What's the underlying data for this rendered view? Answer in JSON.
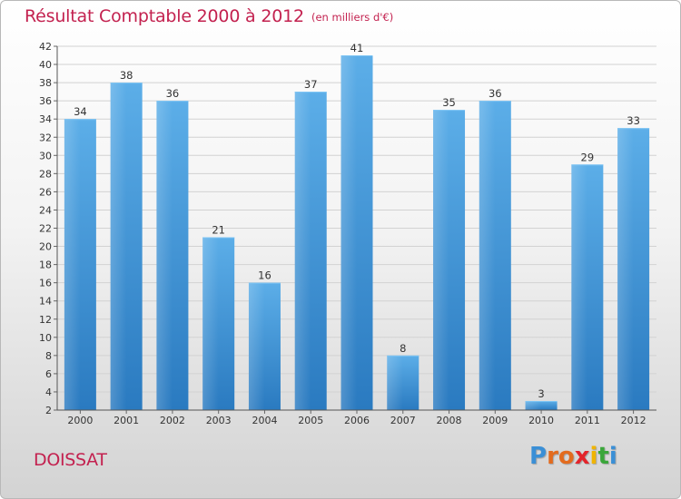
{
  "header": {
    "title": "Résultat Comptable 2000 à 2012",
    "unit": "(en milliers d'€)"
  },
  "footer": {
    "place": "DOISSAT",
    "logo": "Proxiti"
  },
  "colors": {
    "title": "#c3214f",
    "bar_top": "#5caee8",
    "bar_bottom": "#2a7ac0",
    "logo_letters": [
      "#3a8fd6",
      "#e36b1e",
      "#e36b1e",
      "#e3242b",
      "#f0b400",
      "#3aa63a",
      "#3a8fd6"
    ]
  },
  "chart_data": {
    "type": "bar",
    "title": "Résultat Comptable 2000 à 2012",
    "xlabel": "",
    "ylabel": "",
    "categories": [
      "2000",
      "2001",
      "2002",
      "2003",
      "2004",
      "2005",
      "2006",
      "2007",
      "2008",
      "2009",
      "2010",
      "2011",
      "2012"
    ],
    "values": [
      34,
      38,
      36,
      21,
      16,
      37,
      41,
      8,
      35,
      36,
      3,
      29,
      33
    ],
    "ylim": [
      2,
      42
    ],
    "yticks": [
      2,
      4,
      6,
      8,
      10,
      12,
      14,
      16,
      18,
      20,
      22,
      24,
      26,
      28,
      30,
      32,
      34,
      36,
      38,
      40,
      42
    ],
    "grid": true
  }
}
